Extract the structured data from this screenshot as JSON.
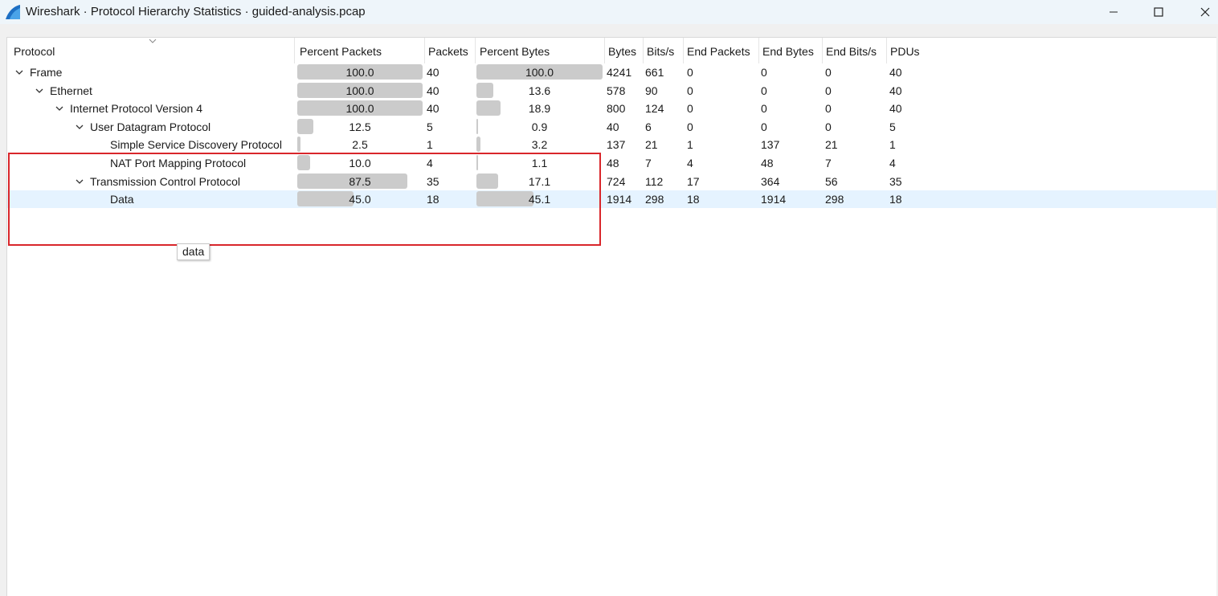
{
  "window": {
    "title": "Wireshark · Protocol Hierarchy Statistics · guided-analysis.pcap",
    "icon": "wireshark-fin-icon"
  },
  "columns": {
    "protocol": "Protocol",
    "percent_packets": "Percent Packets",
    "packets": "Packets",
    "percent_bytes": "Percent Bytes",
    "bytes": "Bytes",
    "bits_s": "Bits/s",
    "end_packets": "End Packets",
    "end_bytes": "End Bytes",
    "end_bits_s": "End Bits/s",
    "pdus": "PDUs"
  },
  "rows": [
    {
      "protocol": "Frame",
      "level": 0,
      "expanded": true,
      "percent_packets": "100.0",
      "packets": "40",
      "percent_bytes": "100.0",
      "bytes": "4241",
      "bits_s": "661",
      "end_packets": "0",
      "end_bytes": "0",
      "end_bits_s": "0",
      "pdus": "40"
    },
    {
      "protocol": "Ethernet",
      "level": 1,
      "expanded": true,
      "percent_packets": "100.0",
      "packets": "40",
      "percent_bytes": "13.6",
      "bytes": "578",
      "bits_s": "90",
      "end_packets": "0",
      "end_bytes": "0",
      "end_bits_s": "0",
      "pdus": "40"
    },
    {
      "protocol": "Internet Protocol Version 4",
      "level": 2,
      "expanded": true,
      "percent_packets": "100.0",
      "packets": "40",
      "percent_bytes": "18.9",
      "bytes": "800",
      "bits_s": "124",
      "end_packets": "0",
      "end_bytes": "0",
      "end_bits_s": "0",
      "pdus": "40"
    },
    {
      "protocol": "User Datagram Protocol",
      "level": 3,
      "expanded": true,
      "percent_packets": "12.5",
      "packets": "5",
      "percent_bytes": "0.9",
      "bytes": "40",
      "bits_s": "6",
      "end_packets": "0",
      "end_bytes": "0",
      "end_bits_s": "0",
      "pdus": "5"
    },
    {
      "protocol": "Simple Service Discovery Protocol",
      "level": 4,
      "expanded": false,
      "percent_packets": "2.5",
      "packets": "1",
      "percent_bytes": "3.2",
      "bytes": "137",
      "bits_s": "21",
      "end_packets": "1",
      "end_bytes": "137",
      "end_bits_s": "21",
      "pdus": "1"
    },
    {
      "protocol": "NAT Port Mapping Protocol",
      "level": 4,
      "expanded": false,
      "percent_packets": "10.0",
      "packets": "4",
      "percent_bytes": "1.1",
      "bytes": "48",
      "bits_s": "7",
      "end_packets": "4",
      "end_bytes": "48",
      "end_bits_s": "7",
      "pdus": "4"
    },
    {
      "protocol": "Transmission Control Protocol",
      "level": 3,
      "expanded": true,
      "percent_packets": "87.5",
      "packets": "35",
      "percent_bytes": "17.1",
      "bytes": "724",
      "bits_s": "112",
      "end_packets": "17",
      "end_bytes": "364",
      "end_bits_s": "56",
      "pdus": "35"
    },
    {
      "protocol": "Data",
      "level": 4,
      "expanded": false,
      "selected": true,
      "percent_packets": "45.0",
      "packets": "18",
      "percent_bytes": "45.1",
      "bytes": "1914",
      "bits_s": "298",
      "end_packets": "18",
      "end_bytes": "1914",
      "end_bits_s": "298",
      "pdus": "18"
    }
  ],
  "tooltip": {
    "text": "data"
  },
  "annotation": {
    "color": "#d9262b"
  }
}
